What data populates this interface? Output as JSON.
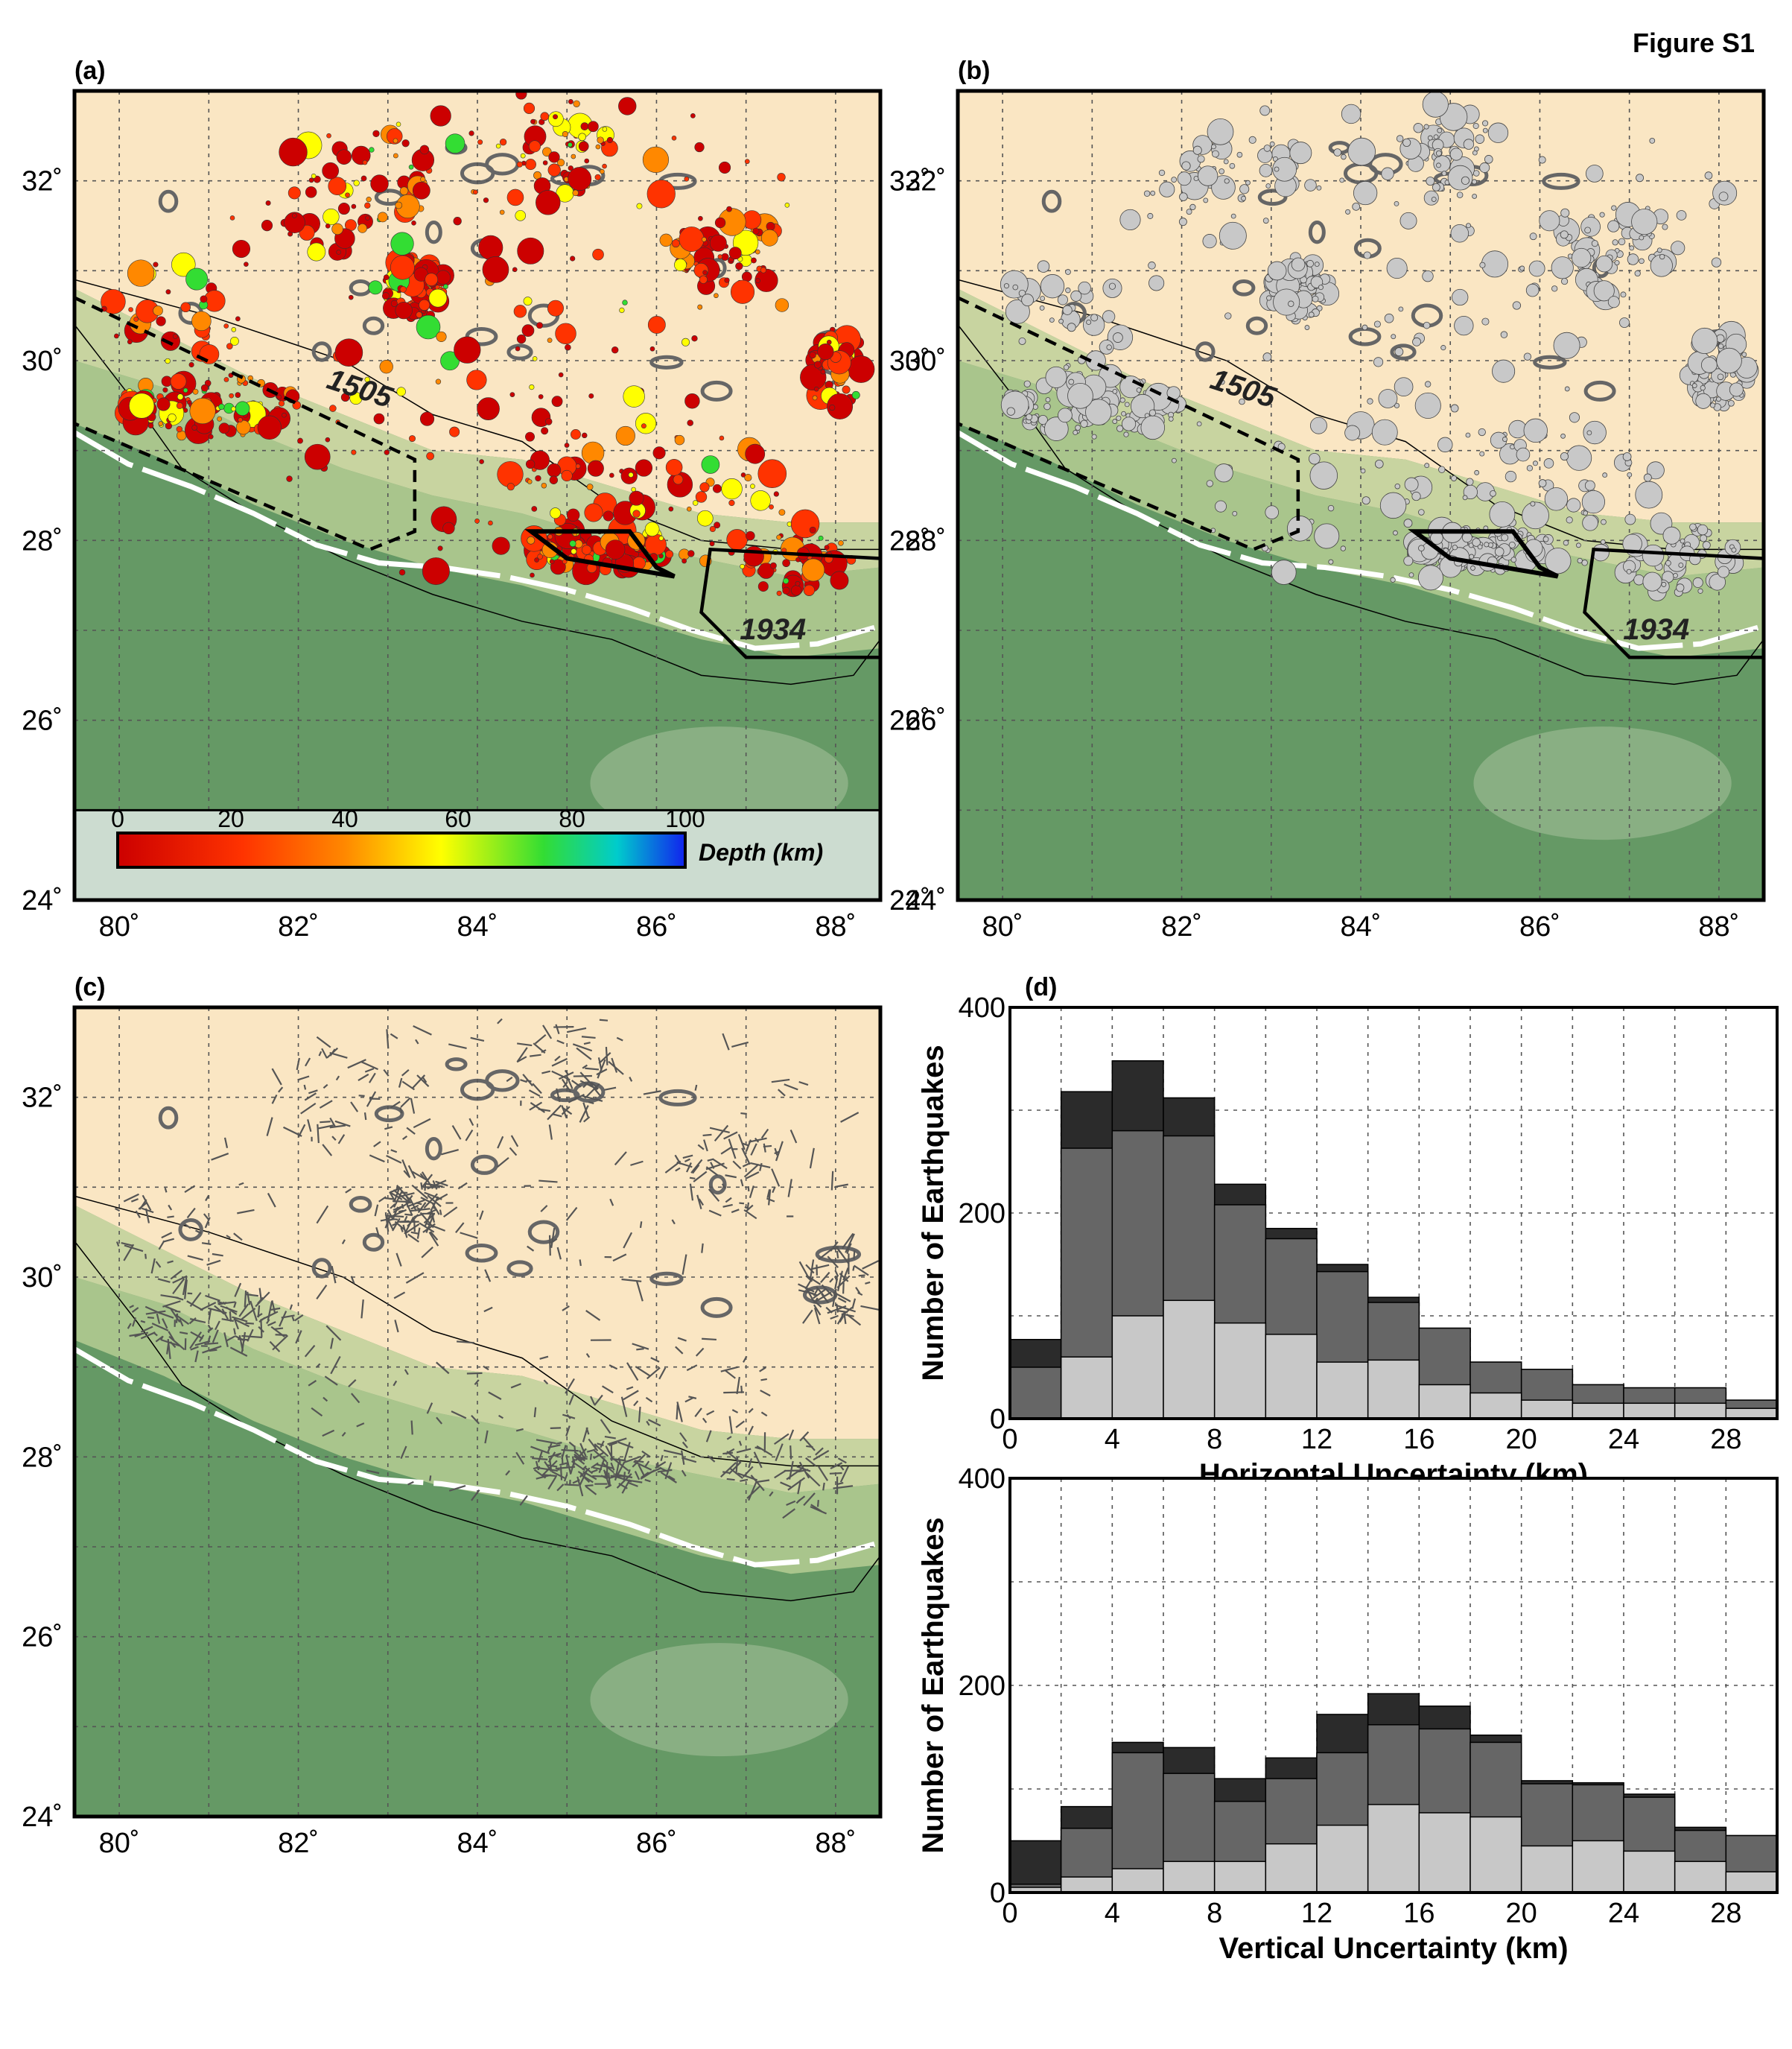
{
  "figure": {
    "title": "Figure S1",
    "panel_labels": [
      "(a)",
      "(b)",
      "(c)",
      "(d)"
    ]
  },
  "map": {
    "lon_ticks": [
      "80˚",
      "82˚",
      "84˚",
      "86˚",
      "88˚"
    ],
    "lat_ticks": [
      "24˚",
      "26˚",
      "28˚",
      "30˚",
      "32˚"
    ],
    "lon_range": [
      79.5,
      88.5
    ],
    "lat_range": [
      24,
      33
    ],
    "rupture_labels": [
      "1505",
      "1934"
    ],
    "colors": {
      "land_low": "#659965",
      "plateau": "#fae6c3",
      "foothills": "#a9c58c",
      "mft_trace": "#ffffff",
      "vector": "#555555"
    }
  },
  "colorbar": {
    "ticks": [
      "0",
      "20",
      "40",
      "60",
      "80",
      "100"
    ],
    "label": "Depth (km)",
    "colors": [
      "#cc0000",
      "#ff3300",
      "#ff8800",
      "#ffff00",
      "#33dd33",
      "#00cccc",
      "#1122ee"
    ]
  },
  "chart_data": [
    {
      "type": "bar",
      "xlabel": "Horizontal Uncertainty (km)",
      "ylabel": "Number of Earthquakes",
      "xlim": [
        0,
        30
      ],
      "ylim": [
        0,
        400
      ],
      "xticks": [
        "0",
        "4",
        "8",
        "12",
        "16",
        "20",
        "24",
        "28"
      ],
      "yticks": [
        "0",
        "200",
        "400"
      ],
      "bin_edges": [
        0,
        2,
        4,
        6,
        8,
        10,
        12,
        14,
        16,
        18,
        20,
        22,
        24,
        26,
        28,
        30
      ],
      "grid": true,
      "series": [
        {
          "color": "#2b2b2b",
          "values": [
            77,
            318,
            348,
            312,
            228,
            185,
            150,
            118,
            88,
            55,
            48,
            33,
            30,
            30,
            18
          ]
        },
        {
          "color": "#666666",
          "values": [
            50,
            263,
            280,
            275,
            208,
            175,
            143,
            113,
            88,
            55,
            48,
            33,
            30,
            30,
            18
          ]
        },
        {
          "color": "#c8c8c8",
          "values": [
            0,
            60,
            100,
            115,
            93,
            82,
            55,
            57,
            33,
            25,
            18,
            15,
            15,
            15,
            10
          ]
        }
      ]
    },
    {
      "type": "bar",
      "xlabel": "Vertical Uncertainty (km)",
      "ylabel": "Number of Earthquakes",
      "xlim": [
        0,
        30
      ],
      "ylim": [
        0,
        400
      ],
      "xticks": [
        "0",
        "4",
        "8",
        "12",
        "16",
        "20",
        "24",
        "28"
      ],
      "yticks": [
        "0",
        "200",
        "400"
      ],
      "bin_edges": [
        0,
        2,
        4,
        6,
        8,
        10,
        12,
        14,
        16,
        18,
        20,
        22,
        24,
        26,
        28,
        30
      ],
      "grid": true,
      "series": [
        {
          "color": "#2b2b2b",
          "values": [
            50,
            83,
            145,
            140,
            110,
            130,
            172,
            192,
            180,
            152,
            108,
            106,
            95,
            63,
            55
          ]
        },
        {
          "color": "#666666",
          "values": [
            8,
            62,
            135,
            115,
            88,
            110,
            135,
            162,
            158,
            145,
            105,
            104,
            92,
            60,
            55
          ]
        },
        {
          "color": "#c8c8c8",
          "values": [
            5,
            15,
            23,
            30,
            30,
            47,
            65,
            85,
            77,
            73,
            45,
            50,
            40,
            30,
            20
          ]
        }
      ]
    }
  ]
}
